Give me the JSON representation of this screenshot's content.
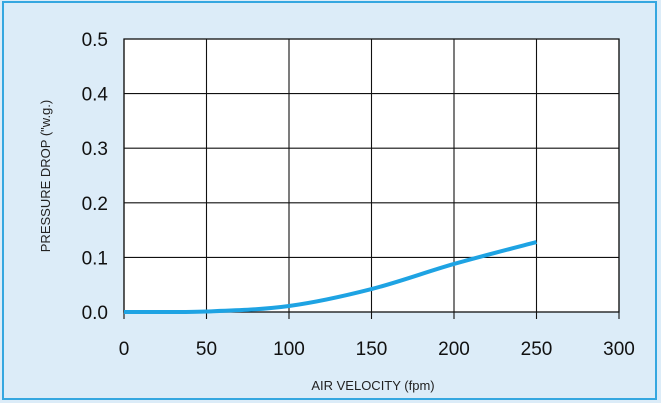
{
  "chart_data": {
    "type": "line",
    "title": "",
    "xlabel": "AIR VELOCITY (fpm)",
    "ylabel": "PRESSURE DROP (\"w.g.)",
    "xlim": [
      0,
      300
    ],
    "ylim": [
      0,
      0.5
    ],
    "x_ticks": [
      "0",
      "50",
      "100",
      "150",
      "200",
      "250",
      "300"
    ],
    "y_ticks": [
      "0.0",
      "0.1",
      "0.2",
      "0.3",
      "0.4",
      "0.5"
    ],
    "grid": true,
    "series": [
      {
        "name": "",
        "color": "#1ea3e3",
        "x": [
          0,
          50,
          100,
          150,
          200,
          250
        ],
        "y": [
          0.0,
          0.001,
          0.011,
          0.042,
          0.088,
          0.128
        ]
      }
    ]
  }
}
